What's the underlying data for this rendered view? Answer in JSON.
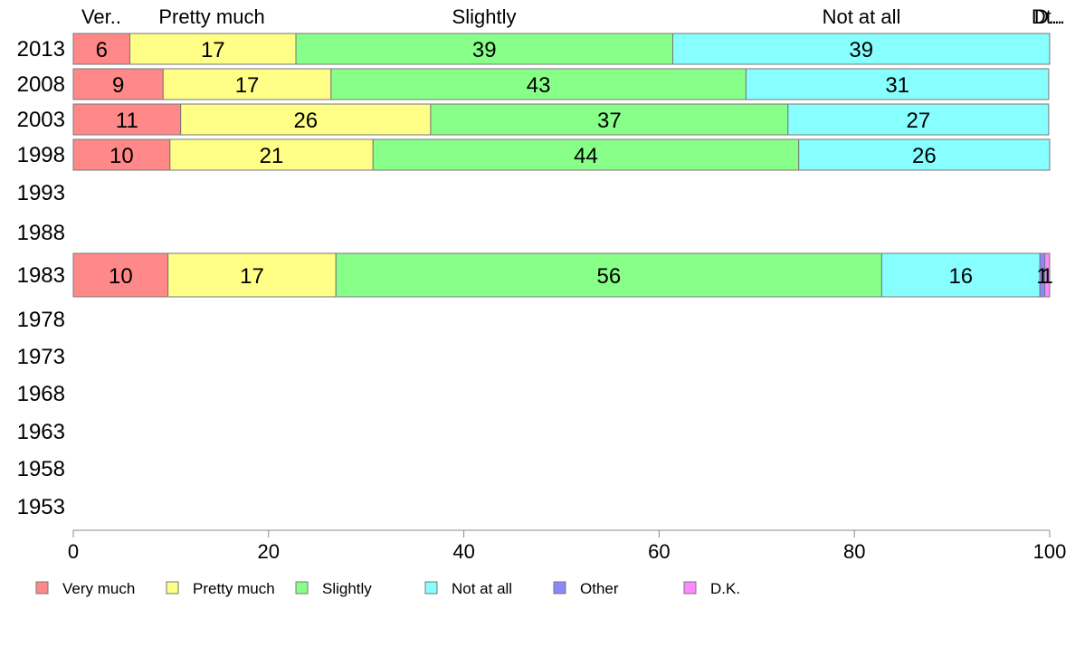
{
  "chart_data": {
    "type": "bar",
    "orientation": "horizontal",
    "stacked": true,
    "categories": [
      "2013",
      "2008",
      "2003",
      "1998",
      "1993",
      "1988",
      "1983",
      "1978",
      "1973",
      "1968",
      "1963",
      "1958",
      "1953"
    ],
    "series": [
      {
        "name": "Very much",
        "color": "#ff8888",
        "values": [
          5.8,
          9.2,
          11.0,
          9.9,
          null,
          null,
          9.7,
          null,
          null,
          null,
          null,
          null,
          null
        ],
        "labels": [
          "6",
          "9",
          "11",
          "10",
          "",
          "",
          "10",
          "",
          "",
          "",
          "",
          "",
          ""
        ]
      },
      {
        "name": "Pretty much",
        "color": "#ffff88",
        "values": [
          17.0,
          17.2,
          25.6,
          20.8,
          null,
          null,
          17.2,
          null,
          null,
          null,
          null,
          null,
          null
        ],
        "labels": [
          "17",
          "17",
          "26",
          "21",
          "",
          "",
          "17",
          "",
          "",
          "",
          "",
          "",
          ""
        ]
      },
      {
        "name": "Slightly",
        "color": "#88ff88",
        "values": [
          38.6,
          42.5,
          36.6,
          43.6,
          null,
          null,
          55.9,
          null,
          null,
          null,
          null,
          null,
          null
        ],
        "labels": [
          "39",
          "43",
          "37",
          "44",
          "",
          "",
          "56",
          "",
          "",
          "",
          "",
          "",
          ""
        ]
      },
      {
        "name": "Not at all",
        "color": "#88ffff",
        "values": [
          38.6,
          31.0,
          26.7,
          25.7,
          null,
          null,
          16.2,
          null,
          null,
          null,
          null,
          null,
          null
        ],
        "labels": [
          "39",
          "31",
          "27",
          "26",
          "",
          "",
          "16",
          "",
          "",
          "",
          "",
          "",
          ""
        ]
      },
      {
        "name": "Other",
        "color": "#8888ff",
        "values": [
          0,
          0,
          0,
          0,
          null,
          null,
          0.5,
          null,
          null,
          null,
          null,
          null,
          null
        ],
        "labels": [
          "",
          "",
          "",
          "",
          "",
          "",
          "1",
          "",
          "",
          "",
          "",
          "",
          ""
        ]
      },
      {
        "name": "D.K.",
        "color": "#ff88ff",
        "values": [
          0,
          0,
          0,
          0,
          null,
          null,
          0.5,
          null,
          null,
          null,
          null,
          null,
          null
        ],
        "labels": [
          "",
          "",
          "",
          "",
          "",
          "",
          "1",
          "",
          "",
          "",
          "",
          "",
          ""
        ]
      }
    ],
    "column_headers": [
      "Ver..",
      "Pretty much",
      "Slightly",
      "Not at all",
      "Dt..",
      "D..."
    ],
    "xlim": [
      0,
      100
    ],
    "xticks": [
      "0",
      "20",
      "40",
      "60",
      "80",
      "100"
    ],
    "xlabel": "",
    "ylabel": "",
    "title": "",
    "grid": false,
    "legend_position": "bottom"
  }
}
